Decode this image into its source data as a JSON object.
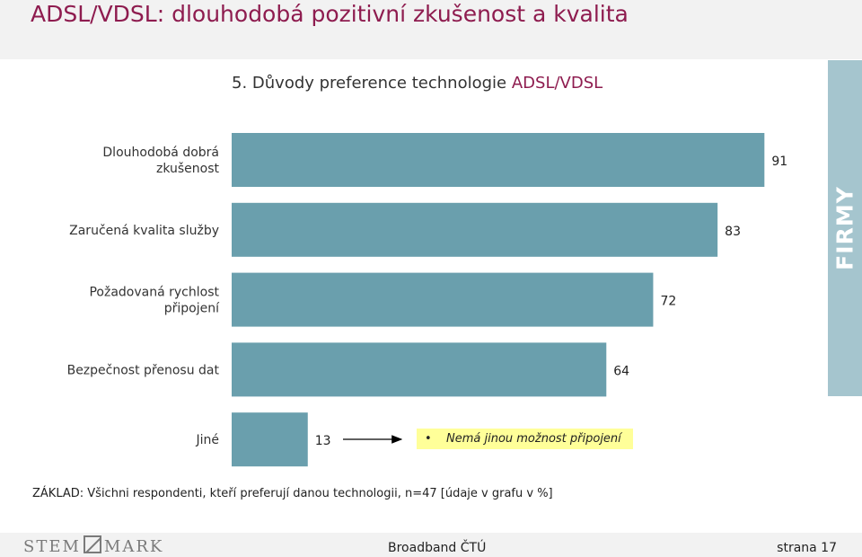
{
  "page": {
    "title": "ADSL/VDSL: dlouhodobá pozitivní zkušenost a kvalita",
    "side_label": "FIRMY",
    "footnote": "ZÁKLAD: Všichni respondenti, kteří preferují danou technologii, n=47 [údaje v grafu v %]",
    "note": "Nemá jinou možnost připojení",
    "note_bullet": "•"
  },
  "footer": {
    "logo_left": "STEM",
    "logo_right": "MARK",
    "center": "Broadband ČTÚ",
    "page": "strana 17"
  },
  "colors": {
    "bar": "#6a9fad",
    "accent": "#8e1c4f",
    "side_band": "#a5c5ce",
    "note_bg": "#ffff99"
  },
  "chart_data": {
    "type": "bar",
    "orientation": "horizontal",
    "title_prefix": "5. Důvody preference technologie",
    "title_highlight": "ADSL/VDSL",
    "categories": [
      [
        "Dlouhodobá dobrá",
        "zkušenost"
      ],
      [
        "Zaručená  kvalita služby"
      ],
      [
        "Požadovaná rychlost",
        "připojení"
      ],
      [
        "Bezpečnost přenosu dat"
      ],
      [
        "Jiné"
      ]
    ],
    "values": [
      91,
      83,
      72,
      64,
      13
    ],
    "xlim": [
      0,
      100
    ],
    "unit": "%",
    "grid": false,
    "legend": "none"
  }
}
